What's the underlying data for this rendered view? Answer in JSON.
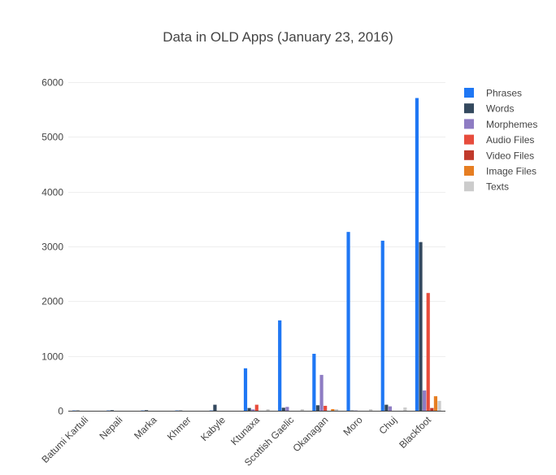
{
  "chart_data": {
    "type": "bar",
    "title": "Data in OLD Apps (January 23, 2016)",
    "xlabel": "",
    "ylabel": "",
    "ylim": [
      0,
      6000
    ],
    "yticks": [
      0,
      1000,
      2000,
      3000,
      4000,
      5000,
      6000
    ],
    "grid": true,
    "legend_position": "right",
    "categories": [
      "Batumi Kartuli",
      "Nepali",
      "Marka",
      "Khmer",
      "Kabyle",
      "Ktunaxa",
      "Scottish Gaelic",
      "Okanagan",
      "Moro",
      "Chuj",
      "Blackfoot"
    ],
    "series": [
      {
        "name": "Phrases",
        "color": "#1f77f4",
        "values": [
          5,
          5,
          5,
          5,
          5,
          775,
          1650,
          1040,
          3265,
          3105,
          5710
        ]
      },
      {
        "name": "Words",
        "color": "#34495e",
        "values": [
          5,
          10,
          10,
          5,
          110,
          50,
          55,
          100,
          5,
          110,
          3080
        ]
      },
      {
        "name": "Morphemes",
        "color": "#8e7cc3",
        "values": [
          0,
          0,
          0,
          0,
          0,
          25,
          70,
          655,
          5,
          80,
          370
        ]
      },
      {
        "name": "Audio Files",
        "color": "#e74c3c",
        "values": [
          0,
          0,
          0,
          0,
          0,
          110,
          0,
          90,
          0,
          0,
          2150
        ]
      },
      {
        "name": "Video Files",
        "color": "#c0392b",
        "values": [
          0,
          0,
          0,
          0,
          0,
          0,
          0,
          0,
          0,
          0,
          50
        ]
      },
      {
        "name": "Image Files",
        "color": "#e67e22",
        "values": [
          0,
          0,
          0,
          0,
          0,
          0,
          0,
          30,
          0,
          0,
          265
        ]
      },
      {
        "name": "Texts",
        "color": "#cccccc",
        "values": [
          0,
          0,
          0,
          0,
          0,
          30,
          30,
          30,
          30,
          60,
          180
        ]
      }
    ]
  }
}
